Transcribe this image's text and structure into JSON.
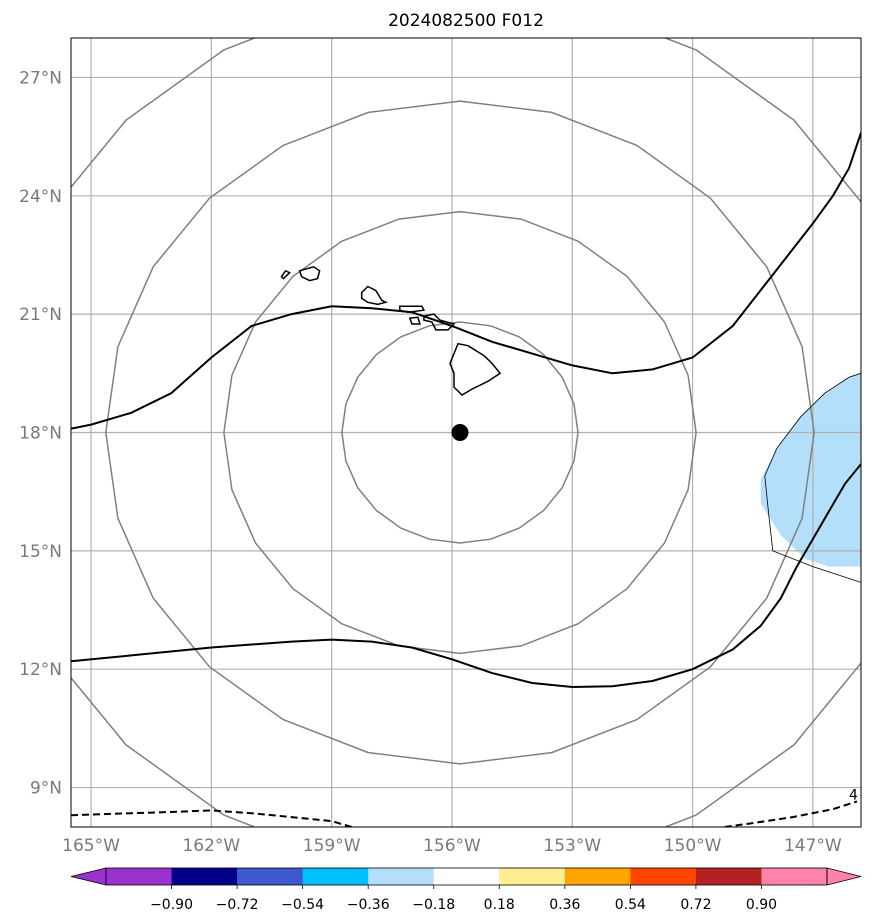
{
  "title": "2024082500 F012",
  "map": {
    "lon_range": [
      -165.5,
      -145.8
    ],
    "lat_range": [
      8.0,
      28.0
    ],
    "x_ticks": [
      {
        "lon": -165,
        "label": "165°W"
      },
      {
        "lon": -162,
        "label": "162°W"
      },
      {
        "lon": -159,
        "label": "159°W"
      },
      {
        "lon": -156,
        "label": "156°W"
      },
      {
        "lon": -153,
        "label": "153°W"
      },
      {
        "lon": -150,
        "label": "150°W"
      },
      {
        "lon": -147,
        "label": "147°W"
      }
    ],
    "y_ticks": [
      {
        "lat": 27,
        "label": "27°N"
      },
      {
        "lat": 24,
        "label": "24°N"
      },
      {
        "lat": 21,
        "label": "21°N"
      },
      {
        "lat": 18,
        "label": "18°N"
      },
      {
        "lat": 15,
        "label": "15°N"
      },
      {
        "lat": 12,
        "label": "12°N"
      },
      {
        "lat": 9,
        "label": "9°N"
      }
    ],
    "grid": true,
    "center_marker": {
      "lon": -155.8,
      "lat": 18.0,
      "color": "#000000"
    },
    "range_rings_radius_deg": [
      2.8,
      5.6,
      8.4,
      11.2
    ],
    "ring_color": "#808080",
    "contour_lines": [
      {
        "style": "solid",
        "points": [
          [
            -165.5,
            18.1
          ],
          [
            -165,
            18.2
          ],
          [
            -164,
            18.5
          ],
          [
            -163,
            19.0
          ],
          [
            -162,
            19.9
          ],
          [
            -161,
            20.7
          ],
          [
            -160,
            21.0
          ],
          [
            -159,
            21.2
          ],
          [
            -158,
            21.15
          ],
          [
            -157,
            21.05
          ],
          [
            -156,
            20.7
          ],
          [
            -155,
            20.3
          ],
          [
            -154,
            20.0
          ],
          [
            -153,
            19.7
          ],
          [
            -152,
            19.5
          ],
          [
            -151,
            19.6
          ],
          [
            -150,
            19.9
          ],
          [
            -149,
            20.7
          ],
          [
            -148,
            22.0
          ],
          [
            -147,
            23.3
          ],
          [
            -146.5,
            24.0
          ],
          [
            -146.1,
            24.7
          ],
          [
            -145.8,
            25.6
          ]
        ]
      },
      {
        "style": "solid",
        "points": [
          [
            -165.5,
            12.2
          ],
          [
            -164,
            12.35
          ],
          [
            -162,
            12.55
          ],
          [
            -160,
            12.7
          ],
          [
            -159,
            12.75
          ],
          [
            -158,
            12.7
          ],
          [
            -157,
            12.55
          ],
          [
            -156,
            12.25
          ],
          [
            -155,
            11.9
          ],
          [
            -154,
            11.65
          ],
          [
            -153,
            11.55
          ],
          [
            -152,
            11.57
          ],
          [
            -151,
            11.7
          ],
          [
            -150,
            12.0
          ],
          [
            -149,
            12.5
          ],
          [
            -148.3,
            13.1
          ],
          [
            -147.8,
            13.8
          ],
          [
            -147.4,
            14.6
          ],
          [
            -147,
            15.3
          ],
          [
            -146.6,
            16.0
          ],
          [
            -146.2,
            16.7
          ],
          [
            -145.8,
            17.2
          ]
        ]
      },
      {
        "style": "dashed",
        "points": [
          [
            -165.5,
            8.3
          ],
          [
            -164,
            8.35
          ],
          [
            -163,
            8.38
          ],
          [
            -162,
            8.42
          ],
          [
            -161,
            8.35
          ],
          [
            -160,
            8.25
          ],
          [
            -159,
            8.15
          ],
          [
            -158.5,
            8.0
          ]
        ]
      },
      {
        "style": "dashed",
        "points": [
          [
            -149.2,
            8.0
          ],
          [
            -148.5,
            8.1
          ],
          [
            -147.5,
            8.25
          ],
          [
            -146.5,
            8.45
          ],
          [
            -145.9,
            8.65
          ]
        ]
      }
    ],
    "contour_line_labels": [
      {
        "lon": -145.9,
        "lat": 8.7,
        "text": "4"
      }
    ],
    "shaded_regions": [
      {
        "color": "#b3dffa",
        "points": [
          [
            -145.8,
            19.5
          ],
          [
            -146.1,
            19.4
          ],
          [
            -146.7,
            19.0
          ],
          [
            -147.3,
            18.4
          ],
          [
            -147.9,
            17.6
          ],
          [
            -148.3,
            16.8
          ],
          [
            -148.3,
            16.2
          ],
          [
            -147.8,
            15.4
          ],
          [
            -147.2,
            14.8
          ],
          [
            -146.6,
            14.6
          ],
          [
            -145.8,
            14.6
          ]
        ]
      }
    ],
    "boundary_lines": [
      {
        "points": [
          [
            -145.8,
            19.5
          ],
          [
            -146.1,
            19.4
          ],
          [
            -146.7,
            19.0
          ],
          [
            -147.3,
            18.4
          ],
          [
            -147.9,
            17.6
          ],
          [
            -148.2,
            16.9
          ],
          [
            -148.1,
            15.9
          ],
          [
            -148.0,
            15.0
          ],
          [
            -147.0,
            14.6
          ],
          [
            -145.8,
            14.2
          ]
        ]
      }
    ],
    "islands": [
      {
        "name": "Kauai-Niihau-a",
        "points": [
          [
            -160.2,
            21.9
          ],
          [
            -160.05,
            22.05
          ],
          [
            -160.15,
            22.1
          ],
          [
            -160.25,
            21.95
          ]
        ]
      },
      {
        "name": "Kauai",
        "points": [
          [
            -159.8,
            22.1
          ],
          [
            -159.45,
            22.2
          ],
          [
            -159.3,
            22.1
          ],
          [
            -159.35,
            21.9
          ],
          [
            -159.55,
            21.85
          ],
          [
            -159.75,
            21.95
          ]
        ]
      },
      {
        "name": "Oahu",
        "points": [
          [
            -158.25,
            21.55
          ],
          [
            -158.1,
            21.7
          ],
          [
            -157.9,
            21.6
          ],
          [
            -157.75,
            21.35
          ],
          [
            -157.65,
            21.3
          ],
          [
            -157.85,
            21.25
          ],
          [
            -158.1,
            21.3
          ],
          [
            -158.25,
            21.4
          ]
        ]
      },
      {
        "name": "Molokai",
        "points": [
          [
            -157.3,
            21.2
          ],
          [
            -156.75,
            21.2
          ],
          [
            -156.7,
            21.1
          ],
          [
            -157.1,
            21.05
          ],
          [
            -157.3,
            21.1
          ]
        ]
      },
      {
        "name": "Lanai",
        "points": [
          [
            -157.05,
            20.9
          ],
          [
            -156.85,
            20.92
          ],
          [
            -156.8,
            20.75
          ],
          [
            -157.0,
            20.75
          ]
        ]
      },
      {
        "name": "Maui",
        "points": [
          [
            -156.7,
            20.95
          ],
          [
            -156.45,
            21.0
          ],
          [
            -156.3,
            20.85
          ],
          [
            -155.95,
            20.75
          ],
          [
            -156.1,
            20.6
          ],
          [
            -156.4,
            20.6
          ],
          [
            -156.5,
            20.8
          ],
          [
            -156.7,
            20.85
          ]
        ]
      },
      {
        "name": "Hawaii",
        "points": [
          [
            -155.85,
            20.25
          ],
          [
            -155.6,
            20.2
          ],
          [
            -155.2,
            19.95
          ],
          [
            -155.0,
            19.75
          ],
          [
            -154.8,
            19.5
          ],
          [
            -155.1,
            19.3
          ],
          [
            -155.5,
            19.1
          ],
          [
            -155.75,
            18.95
          ],
          [
            -155.95,
            19.15
          ],
          [
            -155.95,
            19.5
          ],
          [
            -156.05,
            19.75
          ],
          [
            -155.95,
            20.0
          ]
        ]
      }
    ]
  },
  "colorbar": {
    "colors": [
      "#9932cc",
      "#00008b",
      "#3c5acd",
      "#00bfff",
      "#b3dffa",
      "#ffffff",
      "#ffee90",
      "#ffa500",
      "#ff4500",
      "#b22222",
      "#ff82ab"
    ],
    "labels": [
      "−0.90",
      "−0.72",
      "−0.54",
      "−0.36",
      "−0.18",
      "0.18",
      "0.36",
      "0.54",
      "0.72",
      "0.90"
    ]
  }
}
